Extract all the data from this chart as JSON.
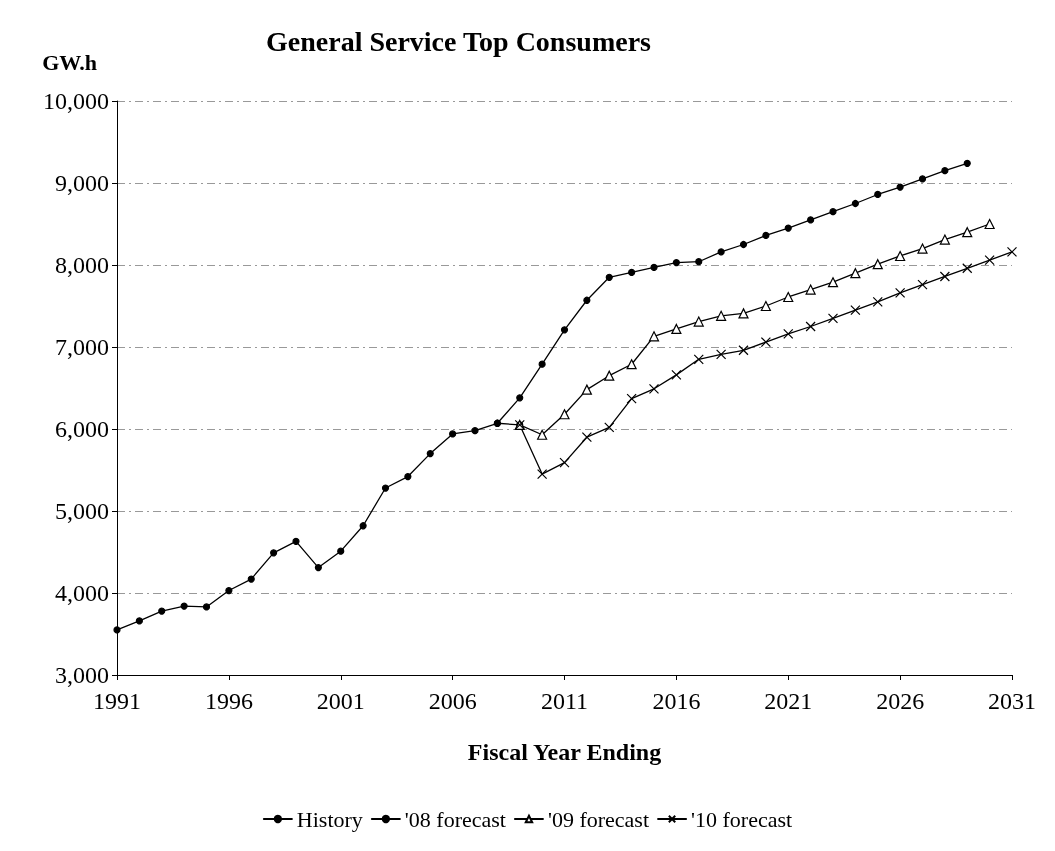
{
  "chart_data": {
    "type": "line",
    "title": "General Service Top Consumers",
    "ylabel": "GW.h",
    "xlabel": "Fiscal Year Ending",
    "xlim": [
      1991,
      2031
    ],
    "xticks": [
      1991,
      1996,
      2001,
      2006,
      2011,
      2016,
      2021,
      2026,
      2031
    ],
    "ylim": [
      3000,
      10000
    ],
    "yticks": [
      {
        "value": 3000,
        "label": "3,000"
      },
      {
        "value": 4000,
        "label": "4,000"
      },
      {
        "value": 5000,
        "label": "5,000"
      },
      {
        "value": 6000,
        "label": "6,000"
      },
      {
        "value": 7000,
        "label": "7,000"
      },
      {
        "value": 8000,
        "label": "8,000"
      },
      {
        "value": 9000,
        "label": "9,000"
      },
      {
        "value": 10000,
        "label": "10,000"
      }
    ],
    "grid": "y",
    "legend": "bottom",
    "series": [
      {
        "name": "History",
        "color": "#000000",
        "marker": "circle",
        "x": [
          1991,
          1992,
          1993,
          1994,
          1995,
          1996,
          1997,
          1998,
          1999,
          2000,
          2001,
          2002,
          2003,
          2004,
          2005,
          2006,
          2007,
          2008,
          2009
        ],
        "values": [
          3550,
          3660,
          3780,
          3840,
          3830,
          4030,
          4170,
          4490,
          4630,
          4310,
          4510,
          4820,
          5280,
          5420,
          5700,
          5940,
          5980,
          6070,
          6050
        ]
      },
      {
        "name": "'08 forecast",
        "color": "#000000",
        "marker": "circle",
        "x": [
          2008,
          2009,
          2010,
          2011,
          2012,
          2013,
          2014,
          2015,
          2016,
          2017,
          2018,
          2019,
          2020,
          2021,
          2022,
          2023,
          2024,
          2025,
          2026,
          2027,
          2028,
          2029
        ],
        "values": [
          6070,
          6380,
          6790,
          7210,
          7570,
          7850,
          7910,
          7970,
          8030,
          8040,
          8160,
          8250,
          8360,
          8450,
          8550,
          8650,
          8750,
          8860,
          8950,
          9050,
          9150,
          9240
        ]
      },
      {
        "name": "'09 forecast",
        "color": "#000000",
        "marker": "triangle",
        "x": [
          2009,
          2010,
          2011,
          2012,
          2013,
          2014,
          2015,
          2016,
          2017,
          2018,
          2019,
          2020,
          2021,
          2022,
          2023,
          2024,
          2025,
          2026,
          2027,
          2028,
          2029,
          2030
        ],
        "values": [
          6050,
          5930,
          6180,
          6480,
          6650,
          6790,
          7130,
          7220,
          7310,
          7380,
          7410,
          7500,
          7610,
          7700,
          7790,
          7900,
          8010,
          8110,
          8200,
          8310,
          8400,
          8500
        ]
      },
      {
        "name": "'10 forecast",
        "color": "#000000",
        "marker": "cross",
        "x": [
          2009,
          2010,
          2011,
          2012,
          2013,
          2014,
          2015,
          2016,
          2017,
          2018,
          2019,
          2020,
          2021,
          2022,
          2023,
          2024,
          2025,
          2026,
          2027,
          2028,
          2029,
          2030,
          2031
        ],
        "values": [
          6050,
          5450,
          5590,
          5900,
          6020,
          6370,
          6490,
          6660,
          6850,
          6910,
          6960,
          7060,
          7160,
          7250,
          7350,
          7450,
          7550,
          7660,
          7760,
          7860,
          7960,
          8060,
          8160
        ]
      }
    ]
  }
}
